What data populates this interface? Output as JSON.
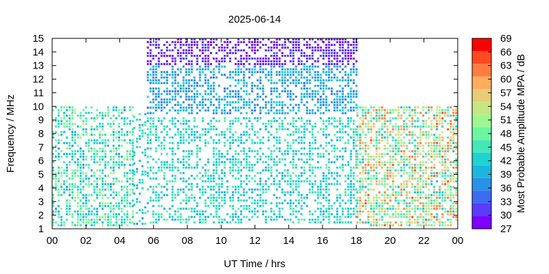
{
  "chart_data": {
    "type": "heatmap",
    "title": "2025-06-14",
    "xlabel": "UT Time / hrs",
    "ylabel": "Frequency / MHz",
    "x_ticks": [
      "00",
      "02",
      "04",
      "06",
      "08",
      "10",
      "12",
      "14",
      "16",
      "18",
      "20",
      "22",
      "00"
    ],
    "y_ticks": [
      "1",
      "2",
      "3",
      "4",
      "5",
      "6",
      "7",
      "8",
      "9",
      "10",
      "11",
      "12",
      "13",
      "14",
      "15"
    ],
    "xlim": [
      0,
      24
    ],
    "ylim": [
      1,
      15
    ],
    "colorbar": {
      "label": "Most Probable Amplitude MPA / dB",
      "ticks": [
        "27",
        "30",
        "33",
        "36",
        "39",
        "42",
        "45",
        "48",
        "51",
        "54",
        "57",
        "60",
        "63",
        "66",
        "69"
      ],
      "range": [
        27,
        69
      ],
      "colors": [
        "#7f00ff",
        "#5a3cfa",
        "#3c6cf0",
        "#2a92e6",
        "#1cb6dd",
        "#1fd3d3",
        "#44e8b8",
        "#6ef5a0",
        "#9cf890",
        "#c8e584",
        "#e8cc78",
        "#ffac5c",
        "#ff7c40",
        "#ff4a22",
        "#ff0000"
      ]
    },
    "regions": [
      {
        "x": [
          0,
          4.8
        ],
        "y": [
          1.2,
          10
        ],
        "amplitude": [
          38,
          52
        ],
        "density": 0.55
      },
      {
        "x": [
          4.8,
          5.6
        ],
        "y": [
          1.2,
          9.5
        ],
        "amplitude": [
          38,
          46
        ],
        "density": 0.35
      },
      {
        "x": [
          5.6,
          18
        ],
        "y": [
          1.3,
          9.2
        ],
        "amplitude": [
          39,
          47
        ],
        "density": 0.45
      },
      {
        "x": [
          5.6,
          18
        ],
        "y": [
          9.5,
          13
        ],
        "amplitude": [
          35,
          42
        ],
        "density": 0.55
      },
      {
        "x": [
          5.6,
          18
        ],
        "y": [
          13,
          15
        ],
        "amplitude": [
          27,
          33
        ],
        "density": 0.6
      },
      {
        "x": [
          18,
          24
        ],
        "y": [
          1.2,
          10
        ],
        "amplitude": [
          40,
          64
        ],
        "density": 0.65
      }
    ]
  }
}
